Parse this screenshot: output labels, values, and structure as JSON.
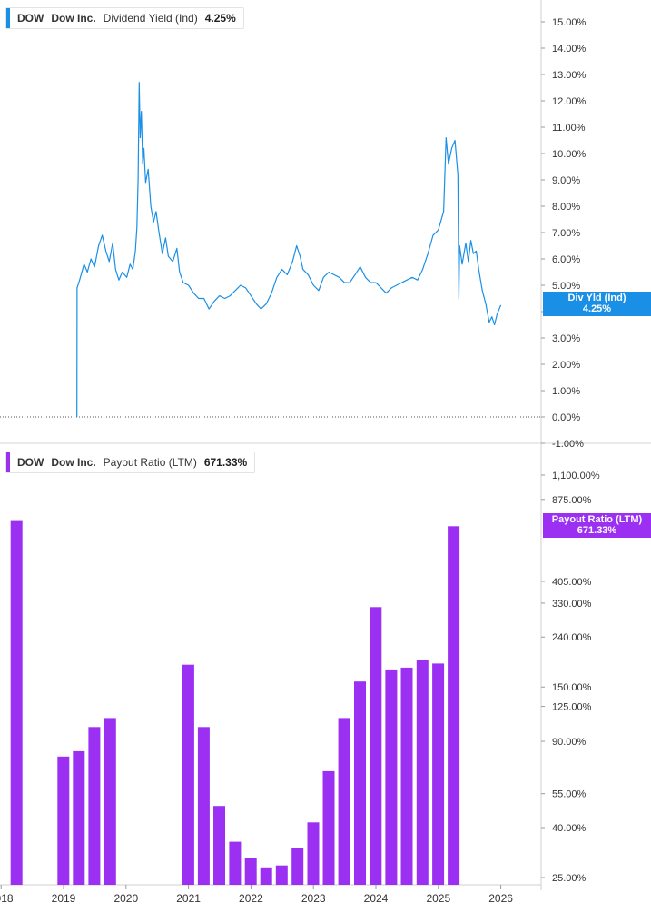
{
  "top_panel": {
    "ticker": "DOW",
    "company": "Dow Inc.",
    "metric": "Dividend Yield (Ind)",
    "value": "4.25%",
    "tag_label": "Div Yld (Ind)",
    "tag_value": "4.25%",
    "color": "#1a8fe6"
  },
  "bottom_panel": {
    "ticker": "DOW",
    "company": "Dow Inc.",
    "metric": "Payout Ratio (LTM)",
    "value": "671.33%",
    "tag_label": "Payout Ratio (LTM)",
    "tag_value": "671.33%",
    "color": "#9b30f2"
  },
  "chart_data": [
    {
      "type": "line",
      "series": [
        {
          "name": "Dividend Yield (Ind)",
          "points": [
            [
              "2019-03-20",
              0.0
            ],
            [
              "2019-03-21",
              4.9
            ],
            [
              "2019-04-05",
              5.2
            ],
            [
              "2019-05-01",
              5.8
            ],
            [
              "2019-05-20",
              5.5
            ],
            [
              "2019-06-10",
              6.0
            ],
            [
              "2019-07-01",
              5.7
            ],
            [
              "2019-07-25",
              6.5
            ],
            [
              "2019-08-15",
              6.9
            ],
            [
              "2019-09-05",
              6.3
            ],
            [
              "2019-09-25",
              5.9
            ],
            [
              "2019-10-15",
              6.6
            ],
            [
              "2019-11-01",
              5.6
            ],
            [
              "2019-11-20",
              5.2
            ],
            [
              "2019-12-10",
              5.5
            ],
            [
              "2020-01-05",
              5.3
            ],
            [
              "2020-01-25",
              5.8
            ],
            [
              "2020-02-10",
              5.6
            ],
            [
              "2020-02-25",
              6.3
            ],
            [
              "2020-03-05",
              7.2
            ],
            [
              "2020-03-12",
              9.0
            ],
            [
              "2020-03-18",
              12.7
            ],
            [
              "2020-03-24",
              10.6
            ],
            [
              "2020-03-31",
              11.6
            ],
            [
              "2020-04-08",
              9.6
            ],
            [
              "2020-04-15",
              10.2
            ],
            [
              "2020-04-25",
              8.9
            ],
            [
              "2020-05-10",
              9.4
            ],
            [
              "2020-05-25",
              8.0
            ],
            [
              "2020-06-10",
              7.4
            ],
            [
              "2020-06-25",
              7.8
            ],
            [
              "2020-07-10",
              7.1
            ],
            [
              "2020-08-01",
              6.2
            ],
            [
              "2020-08-20",
              6.8
            ],
            [
              "2020-09-05",
              6.1
            ],
            [
              "2020-10-01",
              5.9
            ],
            [
              "2020-10-25",
              6.4
            ],
            [
              "2020-11-10",
              5.5
            ],
            [
              "2020-12-01",
              5.1
            ],
            [
              "2021-01-01",
              5.0
            ],
            [
              "2021-02-01",
              4.7
            ],
            [
              "2021-03-01",
              4.5
            ],
            [
              "2021-04-01",
              4.5
            ],
            [
              "2021-05-01",
              4.1
            ],
            [
              "2021-06-01",
              4.4
            ],
            [
              "2021-07-01",
              4.6
            ],
            [
              "2021-08-01",
              4.5
            ],
            [
              "2021-09-01",
              4.6
            ],
            [
              "2021-10-01",
              4.8
            ],
            [
              "2021-11-01",
              5.0
            ],
            [
              "2021-12-01",
              4.9
            ],
            [
              "2022-01-01",
              4.6
            ],
            [
              "2022-02-01",
              4.3
            ],
            [
              "2022-03-01",
              4.1
            ],
            [
              "2022-04-01",
              4.3
            ],
            [
              "2022-05-01",
              4.7
            ],
            [
              "2022-06-01",
              5.3
            ],
            [
              "2022-07-01",
              5.6
            ],
            [
              "2022-08-01",
              5.4
            ],
            [
              "2022-09-01",
              5.9
            ],
            [
              "2022-09-25",
              6.5
            ],
            [
              "2022-10-15",
              6.1
            ],
            [
              "2022-11-01",
              5.6
            ],
            [
              "2022-12-01",
              5.4
            ],
            [
              "2023-01-01",
              5.0
            ],
            [
              "2023-02-01",
              4.8
            ],
            [
              "2023-03-01",
              5.3
            ],
            [
              "2023-04-01",
              5.5
            ],
            [
              "2023-05-01",
              5.4
            ],
            [
              "2023-06-01",
              5.3
            ],
            [
              "2023-07-01",
              5.1
            ],
            [
              "2023-08-01",
              5.1
            ],
            [
              "2023-09-01",
              5.4
            ],
            [
              "2023-10-01",
              5.7
            ],
            [
              "2023-11-01",
              5.3
            ],
            [
              "2023-12-01",
              5.1
            ],
            [
              "2024-01-01",
              5.1
            ],
            [
              "2024-02-01",
              4.9
            ],
            [
              "2024-03-01",
              4.7
            ],
            [
              "2024-04-01",
              4.9
            ],
            [
              "2024-05-01",
              5.0
            ],
            [
              "2024-06-01",
              5.1
            ],
            [
              "2024-07-01",
              5.2
            ],
            [
              "2024-08-01",
              5.3
            ],
            [
              "2024-09-01",
              5.2
            ],
            [
              "2024-10-01",
              5.6
            ],
            [
              "2024-11-01",
              6.2
            ],
            [
              "2024-12-01",
              6.9
            ],
            [
              "2025-01-01",
              7.1
            ],
            [
              "2025-02-01",
              7.8
            ],
            [
              "2025-02-15",
              10.6
            ],
            [
              "2025-03-01",
              9.6
            ],
            [
              "2025-03-20",
              10.2
            ],
            [
              "2025-04-08",
              10.5
            ],
            [
              "2025-04-25",
              9.2
            ],
            [
              "2025-05-01",
              4.5
            ],
            [
              "2025-05-05",
              6.5
            ],
            [
              "2025-05-20",
              5.8
            ],
            [
              "2025-06-10",
              6.6
            ],
            [
              "2025-06-25",
              5.9
            ],
            [
              "2025-07-10",
              6.7
            ],
            [
              "2025-07-25",
              6.2
            ],
            [
              "2025-08-10",
              6.3
            ],
            [
              "2025-08-25",
              5.6
            ],
            [
              "2025-09-15",
              4.8
            ],
            [
              "2025-10-05",
              4.3
            ],
            [
              "2025-10-25",
              3.6
            ],
            [
              "2025-11-10",
              3.8
            ],
            [
              "2025-11-25",
              3.5
            ],
            [
              "2025-12-10",
              3.9
            ],
            [
              "2026-01-01",
              4.25
            ]
          ]
        }
      ],
      "y_ticks": [
        "15.00%",
        "14.00%",
        "13.00%",
        "12.00%",
        "11.00%",
        "10.00%",
        "9.00%",
        "8.00%",
        "7.00%",
        "6.00%",
        "5.00%",
        "4.00%",
        "3.00%",
        "2.00%",
        "1.00%",
        "0.00%",
        "-1.00%"
      ],
      "y_tick_values": [
        15,
        14,
        13,
        12,
        11,
        10,
        9,
        8,
        7,
        6,
        5,
        4,
        3,
        2,
        1,
        0,
        -1
      ],
      "ylim": [
        -1,
        15.8
      ],
      "baseline": 0
    },
    {
      "type": "bar",
      "scale": "log",
      "series": [
        {
          "name": "Payout Ratio (LTM)",
          "dates": [
            "2018-04-01",
            "2018-12-31",
            "2019-03-31",
            "2019-06-30",
            "2019-09-30",
            "2020-12-31",
            "2021-03-31",
            "2021-06-30",
            "2021-09-30",
            "2021-12-31",
            "2022-03-31",
            "2022-06-30",
            "2022-09-30",
            "2022-12-31",
            "2023-03-31",
            "2023-06-30",
            "2023-09-30",
            "2023-12-31",
            "2024-03-31",
            "2024-06-30",
            "2024-09-30",
            "2024-12-31",
            "2025-03-31"
          ],
          "values": [
            720,
            78,
            82,
            103,
            112,
            185,
            103,
            49,
            35,
            30,
            27.5,
            28,
            33,
            42,
            68,
            112,
            158,
            318,
            177,
            180,
            193,
            187,
            680
          ]
        }
      ],
      "y_ticks": [
        "1,100.00%",
        "875.00%",
        "650.00%",
        "405.00%",
        "330.00%",
        "240.00%",
        "150.00%",
        "125.00%",
        "90.00%",
        "55.00%",
        "40.00%",
        "25.00%"
      ],
      "y_tick_values": [
        1100,
        875,
        650,
        405,
        330,
        240,
        150,
        125,
        90,
        55,
        40,
        25
      ]
    }
  ],
  "x_axis": {
    "labels": [
      "2018",
      "2019",
      "2020",
      "2021",
      "2022",
      "2023",
      "2024",
      "2025",
      "2026"
    ],
    "label_years": [
      2018,
      2019,
      2020,
      2021,
      2022,
      2023,
      2024,
      2025,
      2026
    ]
  }
}
